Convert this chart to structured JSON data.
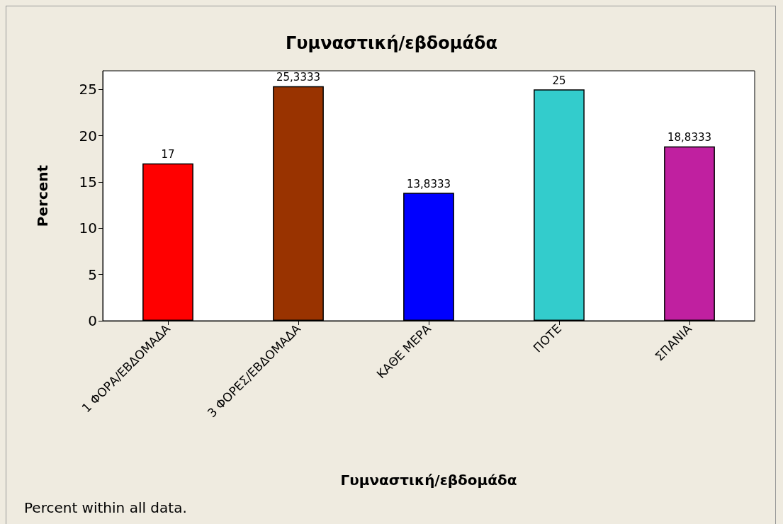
{
  "chart_data": {
    "type": "bar",
    "title": "Γυμναστική/εβδομάδα",
    "xlabel": "Γυμναστική/εβδομάδα",
    "ylabel": "Percent",
    "categories": [
      "1 ΦΟΡΑ/ΕΒΔΟΜΑΔΑ",
      "3 ΦΟΡΕΣ/ΕΒΔΟΜΑΔΑ",
      "ΚΑΘΕ ΜΕΡΑ",
      "ΠΟΤΕ",
      "ΣΠΑΝΙΑ"
    ],
    "values": [
      17,
      25.3333,
      13.8333,
      25,
      18.8333
    ],
    "value_labels": [
      "17",
      "25,3333",
      "13,8333",
      "25",
      "18,8333"
    ],
    "colors": [
      "#ff0000",
      "#993300",
      "#0000ff",
      "#33cccc",
      "#c020a0"
    ],
    "ylim": [
      0,
      27
    ],
    "yticks": [
      0,
      5,
      10,
      15,
      20,
      25
    ],
    "grid": false,
    "annotations": [
      "Percent within all data."
    ]
  }
}
